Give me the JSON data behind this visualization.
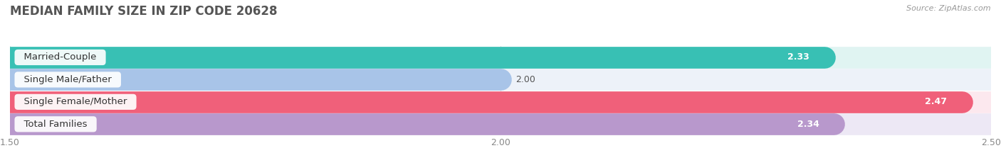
{
  "title": "MEDIAN FAMILY SIZE IN ZIP CODE 20628",
  "source": "Source: ZipAtlas.com",
  "categories": [
    "Married-Couple",
    "Single Male/Father",
    "Single Female/Mother",
    "Total Families"
  ],
  "values": [
    2.33,
    2.0,
    2.47,
    2.34
  ],
  "bar_colors": [
    "#38c0b4",
    "#a8c4e8",
    "#f0607a",
    "#b898cc"
  ],
  "bar_bg_colors": [
    "#e0f4f2",
    "#edf2f9",
    "#fce8ee",
    "#ede8f5"
  ],
  "xlim": [
    1.5,
    2.5
  ],
  "xticks": [
    1.5,
    2.0,
    2.5
  ],
  "xtick_labels": [
    "1.50",
    "2.00",
    "2.50"
  ],
  "bar_height": 0.62,
  "label_fontsize": 9.5,
  "value_fontsize": 9,
  "title_fontsize": 12,
  "bg_color": "#ffffff",
  "grid_color": "#e0e0e0"
}
